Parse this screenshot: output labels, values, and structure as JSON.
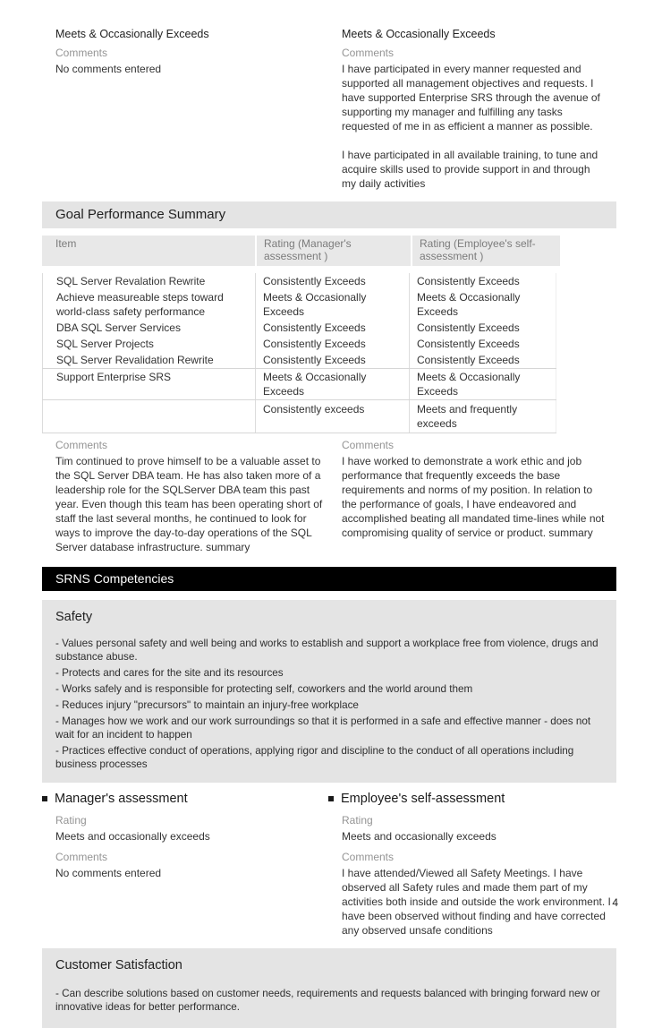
{
  "colors": {
    "section_header_bg": "#e4e4e4",
    "competencies_bar_bg": "#000000",
    "competencies_bar_text": "#ffffff",
    "table_header_bg": "#e8e8e8",
    "muted_label": "#949494"
  },
  "page": {
    "number": "4"
  },
  "top_assessments": {
    "manager": {
      "rating": "Meets & Occasionally Exceeds",
      "comments_label": "Comments",
      "comments": "No comments entered"
    },
    "employee": {
      "rating": "Meets & Occasionally Exceeds",
      "comments_label": "Comments",
      "comments_p1": "I have participated in every manner requested and supported all management objectives and requests. I have supported Enterprise SRS through the avenue of supporting my manager and fulfilling any tasks requested of me in as efficient a manner as possible.",
      "comments_p2": "I have participated in all available training, to tune and acquire skills used to provide support in and through my daily activities"
    }
  },
  "goal_summary": {
    "title": "Goal Performance Summary",
    "table": {
      "headers": [
        "Item",
        "Rating (Manager's assessment )",
        "Rating (Employee's self-assessment )"
      ],
      "rows": [
        {
          "item": "SQL Server Revalation Rewrite",
          "manager": "Consistently Exceeds",
          "employee": "Consistently Exceeds"
        },
        {
          "item": "Achieve measureable steps toward world-class safety performance",
          "manager": "Meets & Occasionally Exceeds",
          "employee": "Meets & Occasionally Exceeds"
        },
        {
          "item": "DBA SQL Server Services",
          "manager": "Consistently Exceeds",
          "employee": "Consistently Exceeds"
        },
        {
          "item": "SQL Server Projects",
          "manager": "Consistently Exceeds",
          "employee": "Consistently Exceeds"
        },
        {
          "item": "SQL Server Revalidation Rewrite",
          "manager": "Consistently Exceeds",
          "employee": "Consistently Exceeds"
        },
        {
          "item": "Support Enterprise SRS",
          "manager": "Meets & Occasionally Exceeds",
          "employee": "Meets & Occasionally Exceeds"
        },
        {
          "item": "",
          "manager": "Consistently exceeds",
          "employee": "Meets and frequently exceeds"
        }
      ]
    },
    "manager_comments": {
      "label": "Comments",
      "text": "Tim continued to prove himself to be a valuable asset to the SQL Server DBA team. He has also taken more of a leadership role for the SQLServer DBA team this past year. Even though this team has been operating short of staff the last several months, he continued to look for ways to improve the day-to-day operations of the SQL Server database infrastructure. summary"
    },
    "employee_comments": {
      "label": "Comments",
      "text": "I have worked to demonstrate a work ethic and job performance that frequently exceeds the base requirements and norms of my position. In relation to the performance of goals, I have endeavored and accomplished beating all mandated time-lines while not compromising quality of service or product. summary"
    }
  },
  "competencies": {
    "title": "SRNS Competencies",
    "safety": {
      "title": "Safety",
      "bullets": [
        "- Values personal safety and well being and works to establish and support a workplace free from violence, drugs and substance abuse.",
        "- Protects and cares for the site and its resources",
        "- Works safely and is responsible for protecting self, coworkers and the world around them",
        "- Reduces injury \"precursors\" to maintain an injury-free workplace",
        "- Manages how we work and our work surroundings so that it is performed in a safe and effective manner - does not wait for an incident to happen",
        "- Practices effective conduct of operations, applying rigor and discipline to the conduct of all operations including business processes"
      ]
    },
    "manager_assessment": {
      "title": "Manager's assessment",
      "rating_label": "Rating",
      "rating": "Meets and occasionally exceeds",
      "comments_label": "Comments",
      "comments": "No comments entered"
    },
    "employee_assessment": {
      "title": "Employee's self-assessment",
      "rating_label": "Rating",
      "rating": "Meets and occasionally exceeds",
      "comments_label": "Comments",
      "comments": "I have attended/Viewed all Safety Meetings. I have observed all Safety rules and made them part of my activities both inside and outside the work environment. I have been observed without finding and have corrected any observed unsafe conditions"
    },
    "customer_satisfaction": {
      "title": "Customer Satisfaction",
      "bullets": [
        "- Can describe solutions based on customer needs, requirements and requests balanced with bringing forward new or innovative ideas for better performance."
      ]
    }
  }
}
